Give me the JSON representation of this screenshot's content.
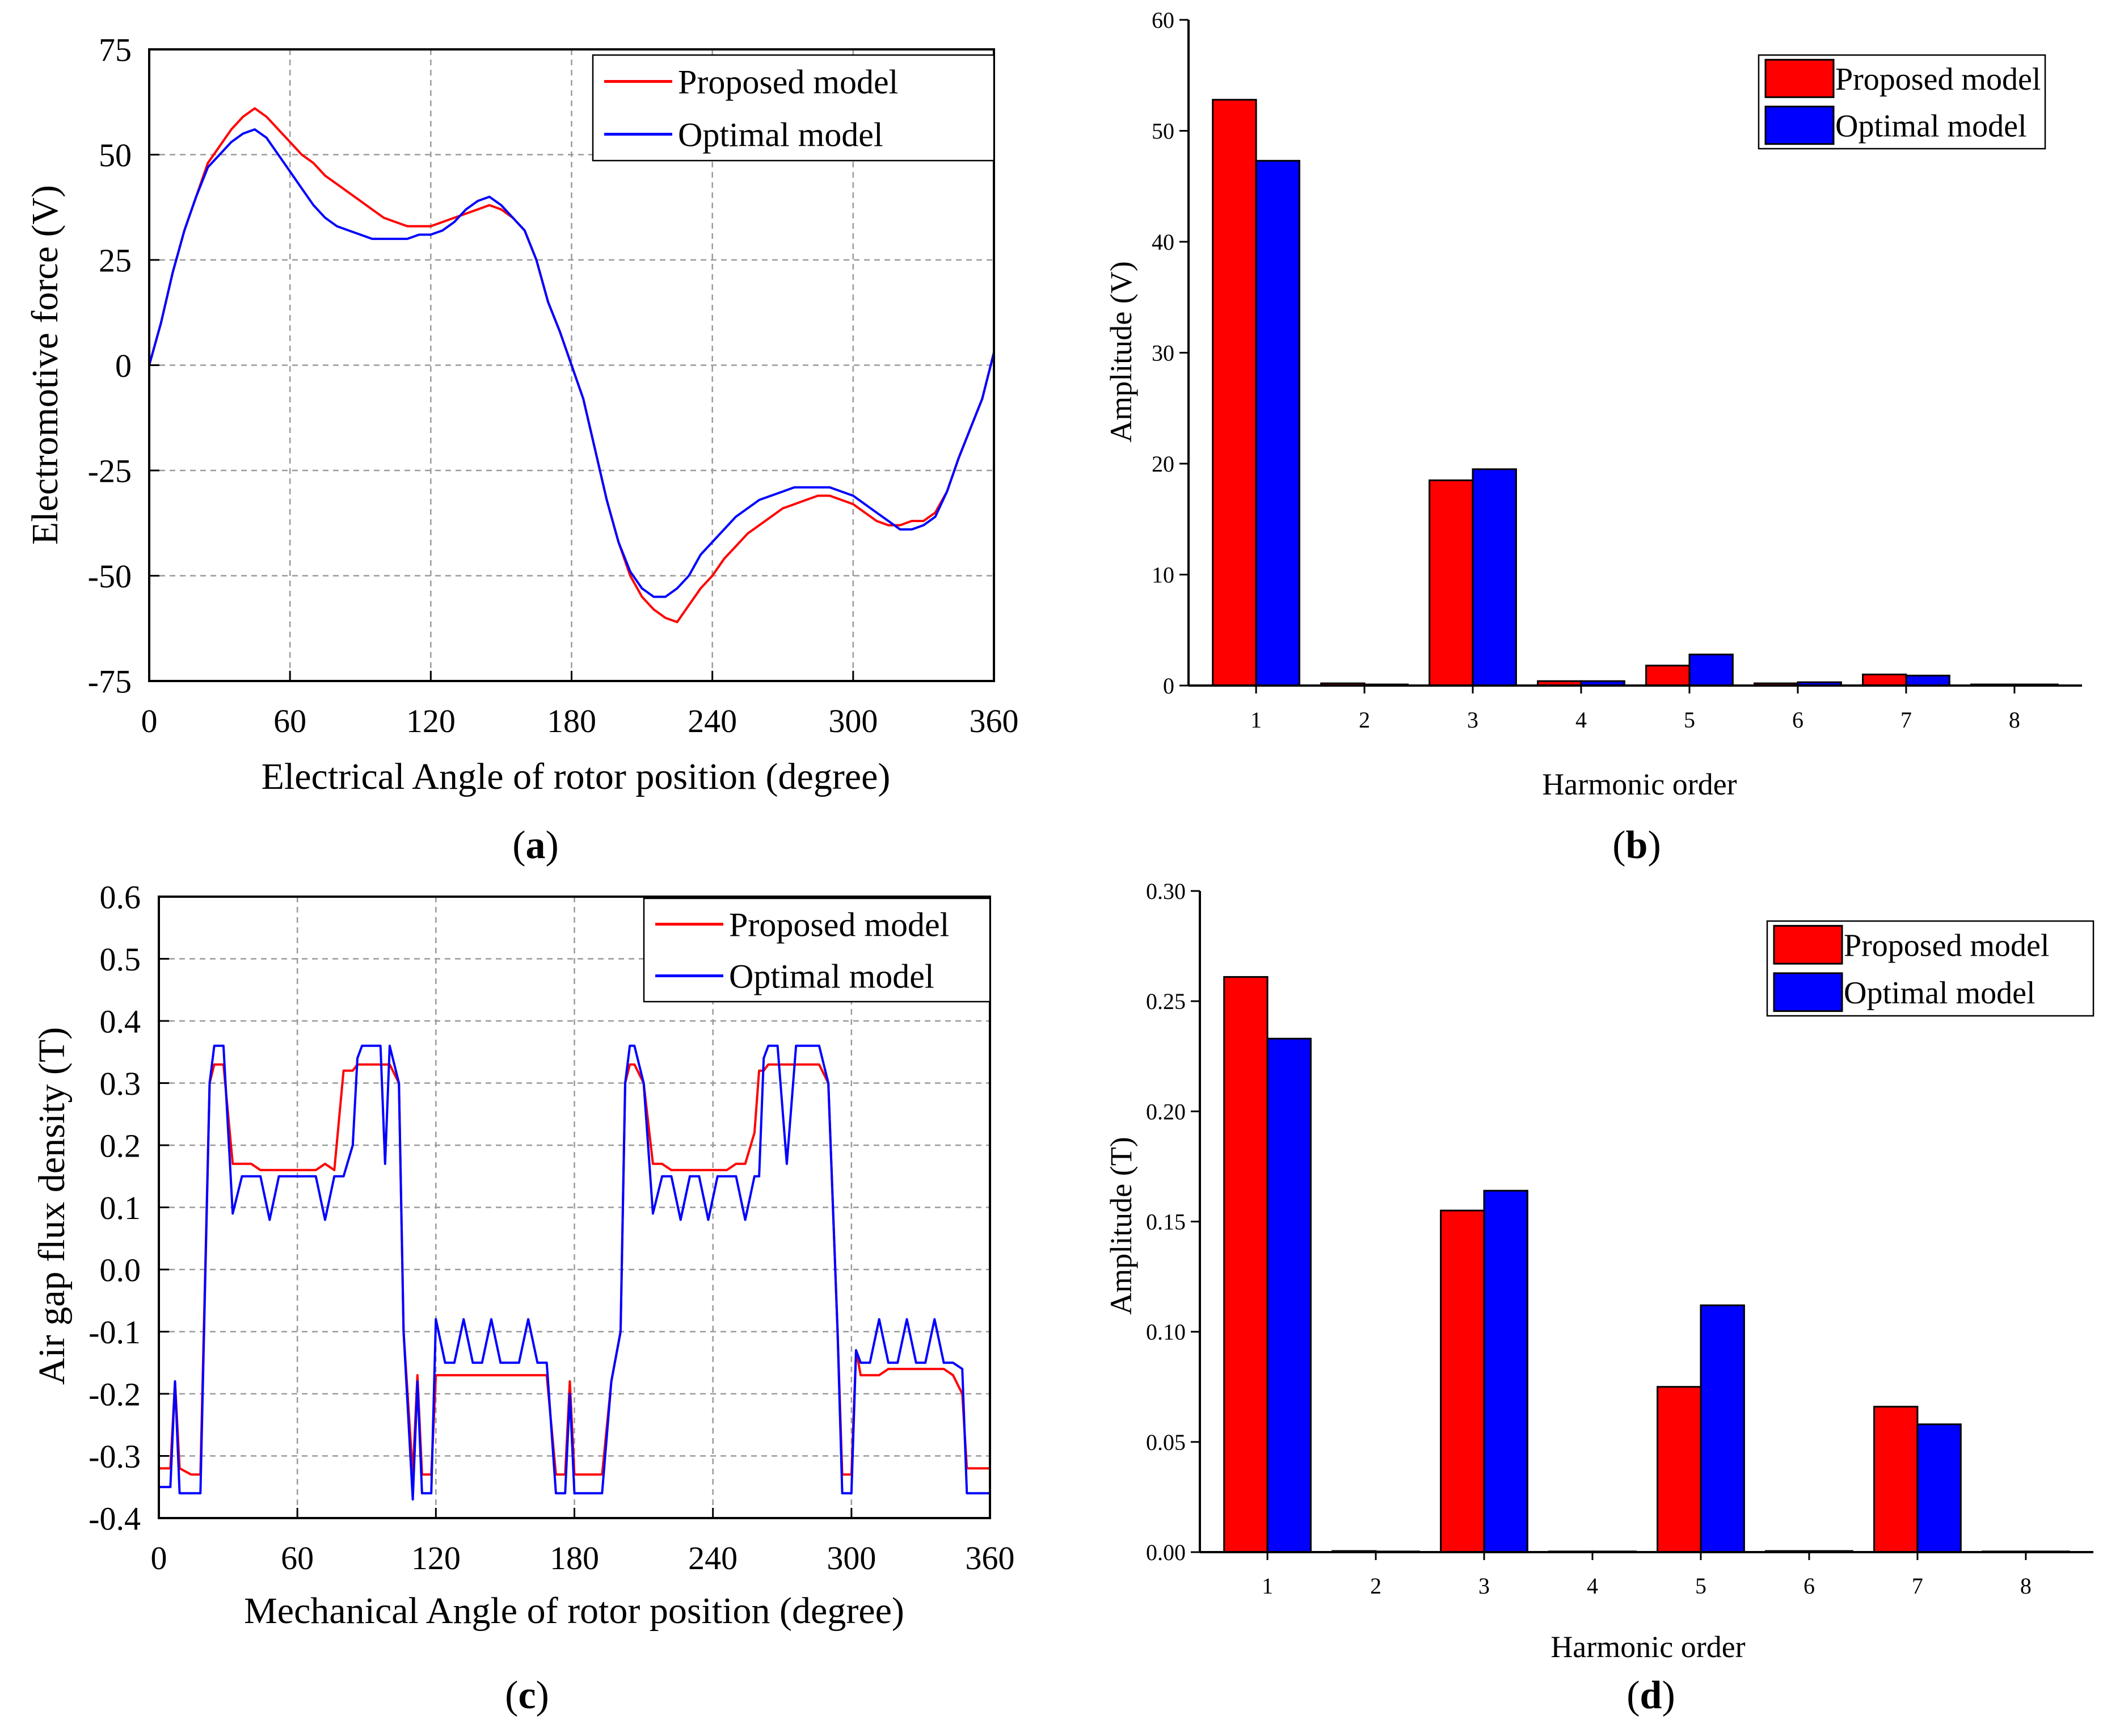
{
  "chart_data": [
    {
      "panel": "a",
      "type": "line",
      "panel_label": "a",
      "xlabel": "Electrical Angle of rotor position (degree)",
      "ylabel": "Electromotive force (V)",
      "xlim": [
        0,
        360
      ],
      "ylim": [
        -75,
        75
      ],
      "xticks": [
        0,
        60,
        120,
        180,
        240,
        300,
        360
      ],
      "yticks": [
        -75,
        -50,
        -25,
        0,
        25,
        50,
        75
      ],
      "grid": true,
      "legend": "top-right",
      "series": [
        {
          "name": "Proposed model",
          "color": "#ff0000",
          "x": [
            0,
            5,
            10,
            15,
            20,
            25,
            30,
            35,
            40,
            45,
            50,
            55,
            60,
            65,
            70,
            75,
            80,
            85,
            90,
            95,
            100,
            105,
            110,
            115,
            120,
            125,
            130,
            135,
            140,
            145,
            150,
            155,
            160,
            165,
            170,
            175,
            180,
            185,
            190,
            195,
            200,
            205,
            210,
            215,
            220,
            225,
            230,
            235,
            240,
            245,
            250,
            255,
            260,
            265,
            270,
            275,
            280,
            285,
            290,
            295,
            300,
            305,
            310,
            315,
            320,
            325,
            330,
            335,
            340,
            345,
            350,
            355,
            360
          ],
          "y": [
            0,
            10,
            22,
            32,
            40,
            48,
            52,
            56,
            59,
            61,
            59,
            56,
            53,
            50,
            48,
            45,
            43,
            41,
            39,
            37,
            35,
            34,
            33,
            33,
            33,
            34,
            35,
            36,
            37,
            38,
            37,
            35,
            32,
            25,
            15,
            8,
            0,
            -8,
            -20,
            -32,
            -42,
            -50,
            -55,
            -58,
            -60,
            -61,
            -57,
            -53,
            -50,
            -46,
            -43,
            -40,
            -38,
            -36,
            -34,
            -33,
            -32,
            -31,
            -31,
            -32,
            -33,
            -35,
            -37,
            -38,
            -38,
            -37,
            -37,
            -35,
            -30,
            -22,
            -15,
            -8,
            3
          ]
        },
        {
          "name": "Optimal model",
          "color": "#0000ff",
          "x": [
            0,
            5,
            10,
            15,
            20,
            25,
            30,
            35,
            40,
            45,
            50,
            55,
            60,
            65,
            70,
            75,
            80,
            85,
            90,
            95,
            100,
            105,
            110,
            115,
            120,
            125,
            130,
            135,
            140,
            145,
            150,
            155,
            160,
            165,
            170,
            175,
            180,
            185,
            190,
            195,
            200,
            205,
            210,
            215,
            220,
            225,
            230,
            235,
            240,
            245,
            250,
            255,
            260,
            265,
            270,
            275,
            280,
            285,
            290,
            295,
            300,
            305,
            310,
            315,
            320,
            325,
            330,
            335,
            340,
            345,
            350,
            355,
            360
          ],
          "y": [
            0,
            10,
            22,
            32,
            40,
            47,
            50,
            53,
            55,
            56,
            54,
            50,
            46,
            42,
            38,
            35,
            33,
            32,
            31,
            30,
            30,
            30,
            30,
            31,
            31,
            32,
            34,
            37,
            39,
            40,
            38,
            35,
            32,
            25,
            15,
            8,
            0,
            -8,
            -20,
            -32,
            -42,
            -49,
            -53,
            -55,
            -55,
            -53,
            -50,
            -45,
            -42,
            -39,
            -36,
            -34,
            -32,
            -31,
            -30,
            -29,
            -29,
            -29,
            -29,
            -30,
            -31,
            -33,
            -35,
            -37,
            -39,
            -39,
            -38,
            -36,
            -30,
            -22,
            -15,
            -8,
            3
          ]
        }
      ]
    },
    {
      "panel": "b",
      "type": "bar",
      "panel_label": "b",
      "xlabel": "Harmonic order",
      "ylabel": "Amplitude (V)",
      "ylim": [
        0,
        60
      ],
      "yticks": [
        0,
        10,
        20,
        30,
        40,
        50,
        60
      ],
      "categories": [
        "1",
        "2",
        "3",
        "4",
        "5",
        "6",
        "7",
        "8"
      ],
      "legend": "top-right",
      "series": [
        {
          "name": "Proposed model",
          "color": "#ff0000",
          "values": [
            52.8,
            0.2,
            18.5,
            0.4,
            1.8,
            0.2,
            1.0,
            0.1
          ]
        },
        {
          "name": "Optimal model",
          "color": "#0000ff",
          "values": [
            47.3,
            0.1,
            19.5,
            0.4,
            2.8,
            0.3,
            0.9,
            0.1
          ]
        }
      ]
    },
    {
      "panel": "c",
      "type": "line",
      "panel_label": "c",
      "xlabel": "Mechanical Angle of rotor position (degree)",
      "ylabel": "Air gap flux density (T)",
      "xlim": [
        0,
        360
      ],
      "ylim": [
        -0.4,
        0.6
      ],
      "xticks": [
        0,
        60,
        120,
        180,
        240,
        300,
        360
      ],
      "yticks": [
        "-0.4",
        "-0.3",
        "-0.2",
        "-0.1",
        "0.0",
        "0.1",
        "0.2",
        "0.3",
        "0.4",
        "0.5",
        "0.6"
      ],
      "grid": true,
      "legend": "top-right",
      "series": [
        {
          "name": "Proposed model",
          "color": "#ff0000",
          "x": [
            0,
            5,
            7,
            9,
            14,
            18,
            22,
            24,
            28,
            32,
            36,
            40,
            44,
            48,
            52,
            56,
            60,
            64,
            68,
            72,
            76,
            80,
            84,
            86,
            88,
            92,
            96,
            98,
            100,
            104,
            106,
            110,
            112,
            114,
            118,
            120,
            124,
            128,
            132,
            136,
            140,
            144,
            148,
            152,
            156,
            160,
            164,
            168,
            172,
            176,
            178,
            180,
            184,
            188,
            192,
            196,
            200,
            202,
            204,
            206,
            210,
            214,
            218,
            222,
            226,
            230,
            234,
            238,
            242,
            246,
            250,
            254,
            258,
            260,
            262,
            264,
            268,
            272,
            276,
            280,
            284,
            286,
            290,
            294,
            296,
            298,
            300,
            302,
            304,
            308,
            312,
            316,
            320,
            324,
            328,
            332,
            336,
            340,
            344,
            348,
            350,
            352,
            356,
            360
          ],
          "y": [
            -0.32,
            -0.32,
            -0.18,
            -0.32,
            -0.33,
            -0.33,
            0.3,
            0.33,
            0.33,
            0.17,
            0.17,
            0.17,
            0.16,
            0.16,
            0.16,
            0.16,
            0.16,
            0.16,
            0.16,
            0.17,
            0.16,
            0.32,
            0.32,
            0.33,
            0.33,
            0.33,
            0.33,
            0.33,
            0.33,
            0.3,
            -0.1,
            -0.33,
            -0.17,
            -0.33,
            -0.33,
            -0.17,
            -0.17,
            -0.17,
            -0.17,
            -0.17,
            -0.17,
            -0.17,
            -0.17,
            -0.17,
            -0.17,
            -0.17,
            -0.17,
            -0.17,
            -0.33,
            -0.33,
            -0.18,
            -0.33,
            -0.33,
            -0.33,
            -0.33,
            -0.18,
            -0.1,
            0.3,
            0.33,
            0.33,
            0.3,
            0.17,
            0.17,
            0.16,
            0.16,
            0.16,
            0.16,
            0.16,
            0.16,
            0.16,
            0.17,
            0.17,
            0.22,
            0.32,
            0.32,
            0.33,
            0.33,
            0.33,
            0.33,
            0.33,
            0.33,
            0.33,
            0.3,
            -0.1,
            -0.33,
            -0.33,
            -0.33,
            -0.13,
            -0.17,
            -0.17,
            -0.17,
            -0.16,
            -0.16,
            -0.16,
            -0.16,
            -0.16,
            -0.16,
            -0.16,
            -0.17,
            -0.2,
            -0.32,
            -0.32,
            -0.32,
            -0.32
          ]
        },
        {
          "name": "Optimal model",
          "color": "#0000ff",
          "x": [
            0,
            5,
            7,
            9,
            14,
            18,
            22,
            24,
            28,
            32,
            36,
            40,
            44,
            48,
            52,
            56,
            60,
            64,
            68,
            72,
            76,
            80,
            84,
            86,
            88,
            92,
            96,
            98,
            100,
            104,
            106,
            110,
            112,
            114,
            118,
            120,
            124,
            128,
            132,
            136,
            140,
            144,
            148,
            152,
            156,
            160,
            164,
            168,
            172,
            176,
            178,
            180,
            184,
            188,
            192,
            196,
            200,
            202,
            204,
            206,
            210,
            214,
            218,
            222,
            226,
            230,
            234,
            238,
            242,
            246,
            250,
            254,
            258,
            260,
            262,
            264,
            268,
            272,
            276,
            280,
            284,
            286,
            290,
            294,
            296,
            298,
            300,
            302,
            304,
            308,
            312,
            316,
            320,
            324,
            328,
            332,
            336,
            340,
            344,
            348,
            350,
            352,
            356,
            360
          ],
          "y": [
            -0.35,
            -0.35,
            -0.18,
            -0.36,
            -0.36,
            -0.36,
            0.3,
            0.36,
            0.36,
            0.09,
            0.15,
            0.15,
            0.15,
            0.08,
            0.15,
            0.15,
            0.15,
            0.15,
            0.15,
            0.08,
            0.15,
            0.15,
            0.2,
            0.34,
            0.36,
            0.36,
            0.36,
            0.17,
            0.36,
            0.3,
            -0.1,
            -0.37,
            -0.18,
            -0.36,
            -0.36,
            -0.08,
            -0.15,
            -0.15,
            -0.08,
            -0.15,
            -0.15,
            -0.08,
            -0.15,
            -0.15,
            -0.15,
            -0.08,
            -0.15,
            -0.15,
            -0.36,
            -0.36,
            -0.2,
            -0.36,
            -0.36,
            -0.36,
            -0.36,
            -0.18,
            -0.1,
            0.3,
            0.36,
            0.36,
            0.3,
            0.09,
            0.15,
            0.15,
            0.08,
            0.15,
            0.15,
            0.08,
            0.15,
            0.15,
            0.15,
            0.08,
            0.15,
            0.15,
            0.34,
            0.36,
            0.36,
            0.17,
            0.36,
            0.36,
            0.36,
            0.36,
            0.3,
            -0.1,
            -0.36,
            -0.36,
            -0.36,
            -0.13,
            -0.15,
            -0.15,
            -0.08,
            -0.15,
            -0.15,
            -0.08,
            -0.15,
            -0.15,
            -0.08,
            -0.15,
            -0.15,
            -0.16,
            -0.36,
            -0.36,
            -0.36,
            -0.36
          ]
        }
      ]
    },
    {
      "panel": "d",
      "type": "bar",
      "panel_label": "d",
      "xlabel": "Harmonic order",
      "ylabel": "Amplitude (T)",
      "ylim": [
        0,
        0.3
      ],
      "yticks": [
        "0.00",
        "0.05",
        "0.10",
        "0.15",
        "0.20",
        "0.25",
        "0.30"
      ],
      "categories": [
        "1",
        "2",
        "3",
        "4",
        "5",
        "6",
        "7",
        "8"
      ],
      "legend": "top-right",
      "series": [
        {
          "name": "Proposed model",
          "color": "#ff0000",
          "values": [
            0.261,
            0.0005,
            0.155,
            0.0003,
            0.075,
            0.0005,
            0.066,
            0.0003
          ]
        },
        {
          "name": "Optimal model",
          "color": "#0000ff",
          "values": [
            0.233,
            0.0003,
            0.164,
            0.0003,
            0.112,
            0.0005,
            0.058,
            0.0003
          ]
        }
      ]
    }
  ]
}
